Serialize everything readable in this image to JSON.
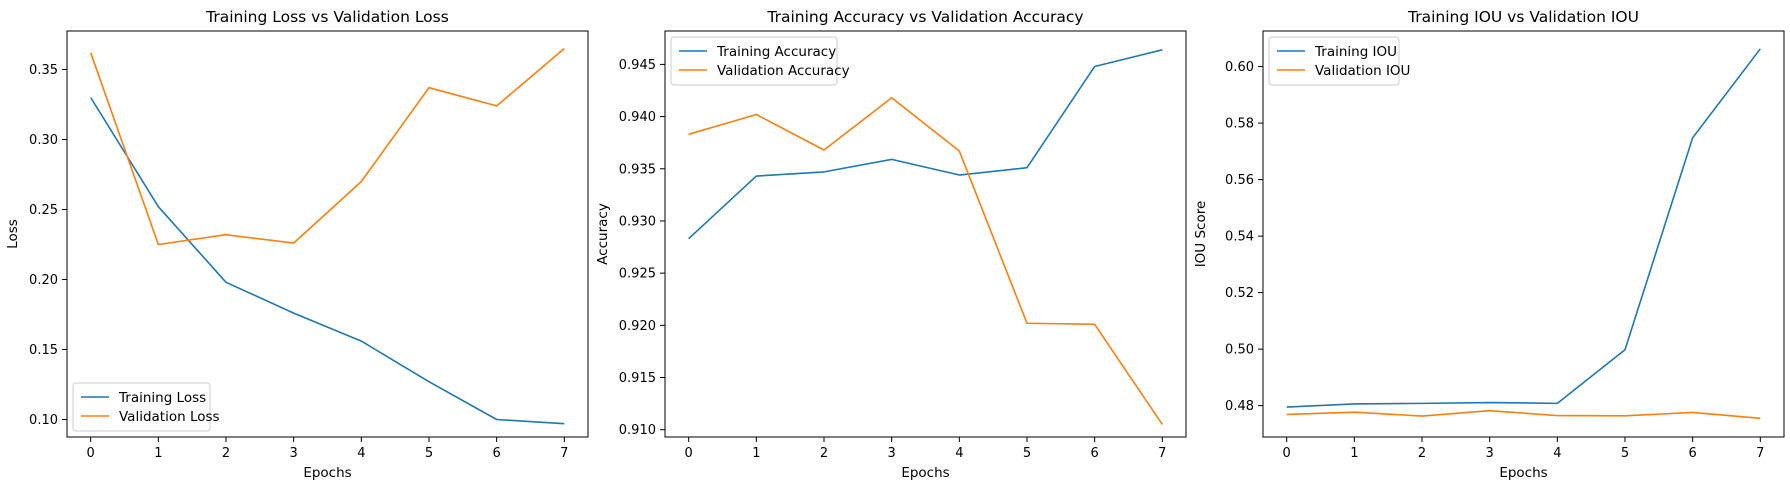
{
  "chart_data": [
    {
      "type": "line",
      "title": "Training Loss vs Validation Loss",
      "xlabel": "Epochs",
      "ylabel": "Loss",
      "x": [
        0,
        1,
        2,
        3,
        4,
        5,
        6,
        7
      ],
      "xlim": [
        -0.35,
        7.35
      ],
      "ylim": [
        0.0875,
        0.3775
      ],
      "yticks": [
        0.1,
        0.15,
        0.2,
        0.25,
        0.3,
        0.35
      ],
      "ytick_decimals": 2,
      "legend_position": "lower-left",
      "series": [
        {
          "name": "Training Loss",
          "color": "#1f77b4",
          "values": [
            0.33,
            0.252,
            0.198,
            0.176,
            0.156,
            0.127,
            0.1,
            0.097
          ]
        },
        {
          "name": "Validation Loss",
          "color": "#ff7f0e",
          "values": [
            0.362,
            0.225,
            0.232,
            0.226,
            0.27,
            0.337,
            0.324,
            0.365
          ]
        }
      ]
    },
    {
      "type": "line",
      "title": "Training Accuracy vs Validation Accuracy",
      "xlabel": "Epochs",
      "ylabel": "Accuracy",
      "x": [
        0,
        1,
        2,
        3,
        4,
        5,
        6,
        7
      ],
      "xlim": [
        -0.35,
        7.35
      ],
      "ylim": [
        0.9093,
        0.9482
      ],
      "yticks": [
        0.91,
        0.915,
        0.92,
        0.925,
        0.93,
        0.935,
        0.94,
        0.945
      ],
      "ytick_decimals": 3,
      "legend_position": "upper-left",
      "series": [
        {
          "name": "Training Accuracy",
          "color": "#1f77b4",
          "values": [
            0.9283,
            0.9343,
            0.9347,
            0.9359,
            0.9344,
            0.9351,
            0.9448,
            0.9464
          ]
        },
        {
          "name": "Validation Accuracy",
          "color": "#ff7f0e",
          "values": [
            0.9383,
            0.9402,
            0.9368,
            0.9418,
            0.9367,
            0.9202,
            0.9201,
            0.9105
          ]
        }
      ]
    },
    {
      "type": "line",
      "title": "Training IOU vs Validation IOU",
      "xlabel": "Epochs",
      "ylabel": "IOU Score",
      "x": [
        0,
        1,
        2,
        3,
        4,
        5,
        6,
        7
      ],
      "xlim": [
        -0.35,
        7.35
      ],
      "ylim": [
        0.4689,
        0.6126
      ],
      "yticks": [
        0.48,
        0.5,
        0.52,
        0.54,
        0.56,
        0.58,
        0.6
      ],
      "ytick_decimals": 2,
      "legend_position": "upper-left",
      "series": [
        {
          "name": "Training IOU",
          "color": "#1f77b4",
          "values": [
            0.4795,
            0.4806,
            0.4808,
            0.4811,
            0.4808,
            0.4998,
            0.5748,
            0.6063
          ]
        },
        {
          "name": "Validation IOU",
          "color": "#ff7f0e",
          "values": [
            0.4769,
            0.4777,
            0.4763,
            0.4782,
            0.4765,
            0.4764,
            0.4776,
            0.4755
          ]
        }
      ]
    }
  ]
}
